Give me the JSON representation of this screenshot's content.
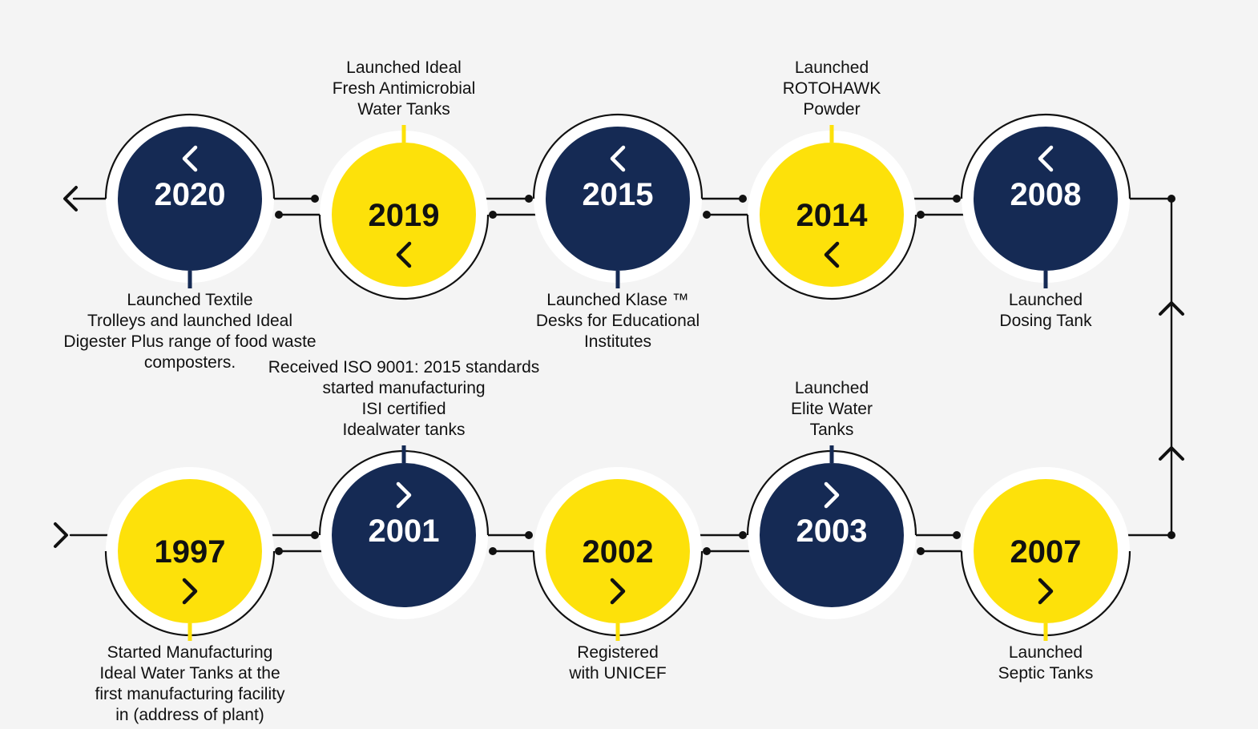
{
  "colors": {
    "navy": "#152a54",
    "yellow": "#fde10a",
    "line": "#111111",
    "ring": "#ffffff",
    "background": "#f4f4f4",
    "label": "#111111"
  },
  "timeline": {
    "top_row_direction": "left",
    "bottom_row_direction": "right",
    "top_row": [
      {
        "year": "2020",
        "color": "navy",
        "label_position": "below",
        "lines": [
          "Launched Textile",
          "Trolleys and launched Ideal",
          "Digester Plus range of food waste",
          "composters."
        ]
      },
      {
        "year": "2019",
        "color": "yellow",
        "label_position": "above",
        "lines": [
          "Launched Ideal",
          "Fresh Antimicrobial",
          "Water Tanks"
        ]
      },
      {
        "year": "2015",
        "color": "navy",
        "label_position": "below",
        "lines": [
          "Launched Klase ™",
          "Desks for Educational",
          "Institutes"
        ]
      },
      {
        "year": "2014",
        "color": "yellow",
        "label_position": "above",
        "lines": [
          "Launched",
          "ROTOHAWK",
          "Powder"
        ]
      },
      {
        "year": "2008",
        "color": "navy",
        "label_position": "below",
        "lines": [
          "Launched",
          "Dosing Tank"
        ]
      }
    ],
    "bottom_row": [
      {
        "year": "1997",
        "color": "yellow",
        "label_position": "below",
        "lines": [
          "Started Manufacturing",
          "Ideal Water Tanks at the",
          "first manufacturing facility",
          "in (address of plant)"
        ]
      },
      {
        "year": "2001",
        "color": "navy",
        "label_position": "above",
        "lines": [
          "Received ISO 9001: 2015 standards",
          "started manufacturing",
          "ISI certified",
          "Idealwater tanks"
        ]
      },
      {
        "year": "2002",
        "color": "yellow",
        "label_position": "below",
        "lines": [
          "Registered",
          "with UNICEF"
        ]
      },
      {
        "year": "2003",
        "color": "navy",
        "label_position": "above",
        "lines": [
          "Launched",
          "Elite Water",
          "Tanks"
        ]
      },
      {
        "year": "2007",
        "color": "yellow",
        "label_position": "below",
        "lines": [
          "Launched",
          "Septic Tanks"
        ]
      }
    ]
  }
}
